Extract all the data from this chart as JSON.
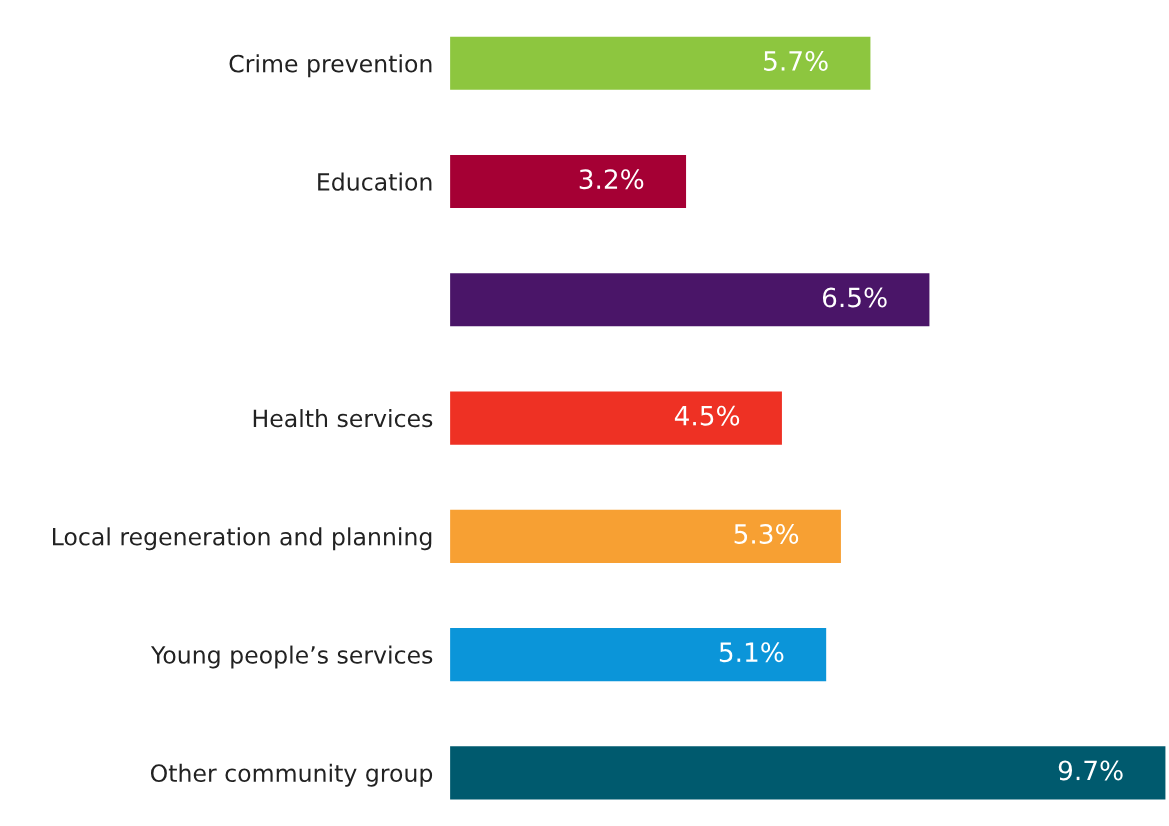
{
  "chart_data": {
    "type": "bar",
    "orientation": "horizontal",
    "categories": [
      "Crime prevention",
      "Education",
      null,
      "Health services",
      "Local regeneration and planning",
      "Young people’s services",
      "Other community group"
    ],
    "values": [
      5.7,
      3.2,
      6.5,
      4.5,
      5.3,
      5.1,
      9.7
    ],
    "value_labels": [
      "5.7%",
      "3.2%",
      "6.5%",
      "4.5%",
      "5.3%",
      "5.1%",
      "9.7%"
    ],
    "colors": [
      "#8dc63f",
      "#a50034",
      "#4a1568",
      "#ee3124",
      "#f7a033",
      "#0b95d9",
      "#005a6e"
    ],
    "grid": false,
    "legend": false
  }
}
